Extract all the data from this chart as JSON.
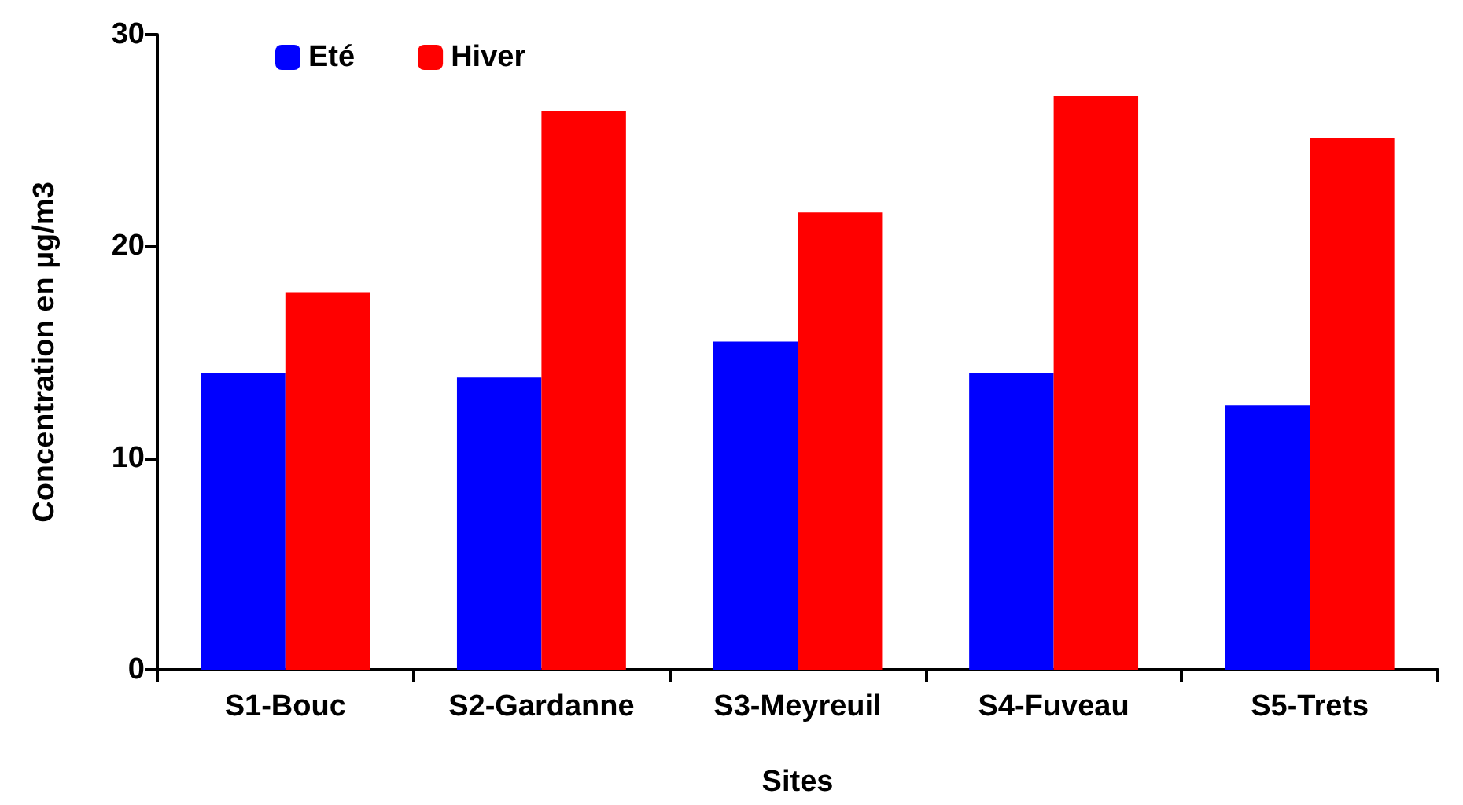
{
  "chart_data": {
    "type": "bar",
    "xlabel": "Sites",
    "ylabel": "Concentration en µg/m3",
    "categories": [
      "S1-Bouc",
      "S2-Gardanne",
      "S3-Meyreuil",
      "S4-Fuveau",
      "S5-Trets"
    ],
    "series": [
      {
        "name": "Eté",
        "color": "#0000ff",
        "values": [
          14.0,
          13.8,
          15.5,
          14.0,
          12.5
        ]
      },
      {
        "name": "Hiver",
        "color": "#ff0000",
        "values": [
          17.8,
          26.4,
          21.6,
          27.1,
          25.1
        ]
      }
    ],
    "ylim": [
      0,
      30
    ],
    "yticks": [
      0,
      10,
      20,
      30
    ],
    "grid": false,
    "legend": "top left"
  }
}
